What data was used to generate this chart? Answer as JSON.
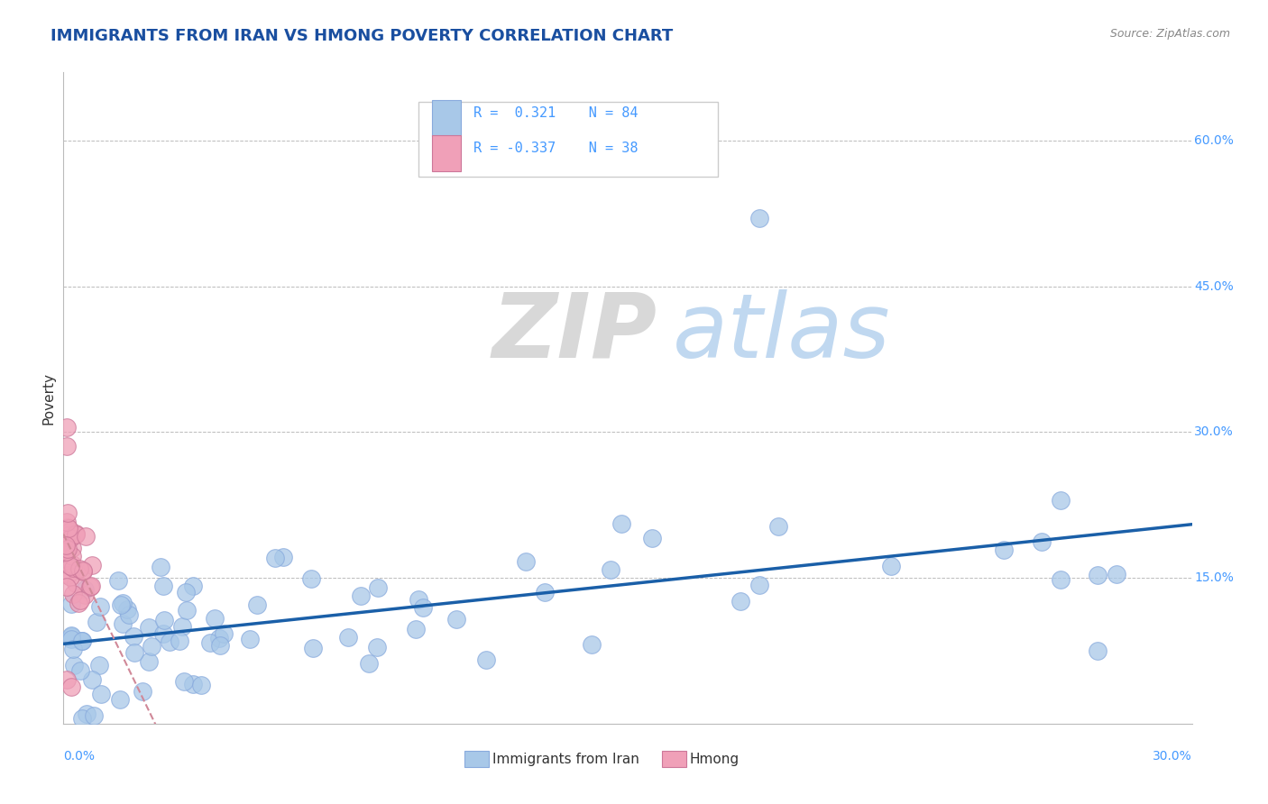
{
  "title": "IMMIGRANTS FROM IRAN VS HMONG POVERTY CORRELATION CHART",
  "source": "Source: ZipAtlas.com",
  "ylabel": "Poverty",
  "watermark_zip": "ZIP",
  "watermark_atlas": "atlas",
  "y_tick_positions": [
    0.15,
    0.3,
    0.45,
    0.6
  ],
  "y_tick_labels": [
    "15.0%",
    "30.0%",
    "45.0%",
    "60.0%"
  ],
  "x_range": [
    0.0,
    0.3
  ],
  "y_range": [
    0.0,
    0.67
  ],
  "iran_color": "#a8c8e8",
  "hmong_color": "#f0a0b8",
  "iran_line_color": "#1a5fa8",
  "hmong_line_color": "#d08898",
  "grid_color": "#cccccc",
  "title_color": "#1a4fa0",
  "source_color": "#888888",
  "ylabel_color": "#333333",
  "tick_label_color": "#4499ff",
  "x_label_color": "#4499ff",
  "legend_r_color": "#4499ff",
  "legend_text_color": "#333333"
}
